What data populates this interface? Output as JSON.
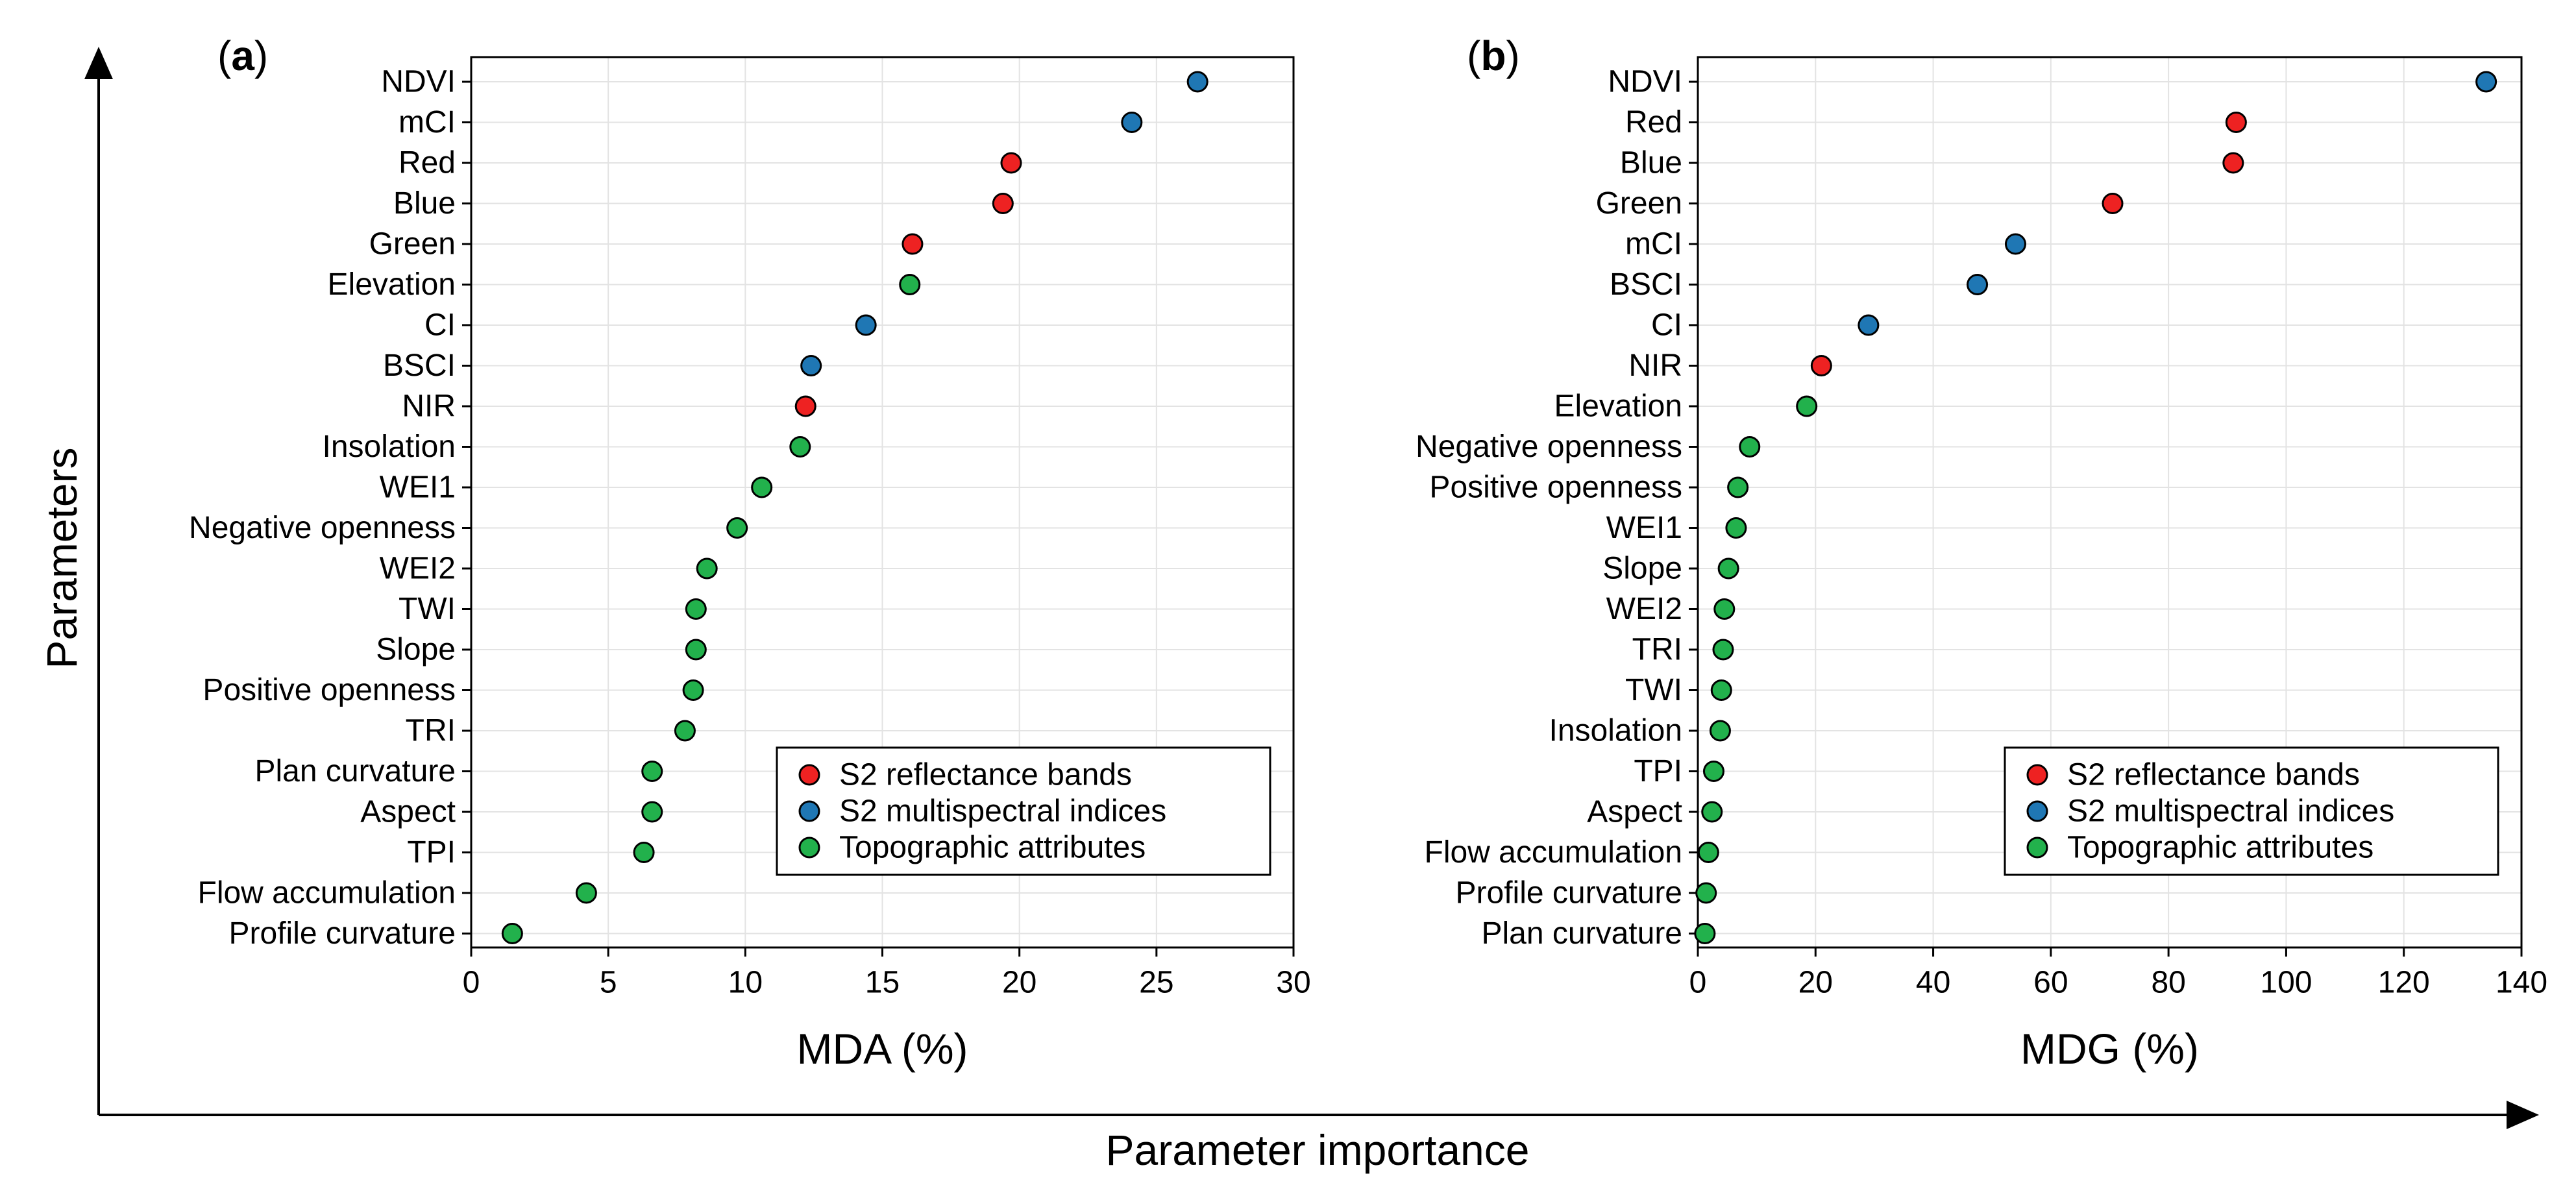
{
  "figure": {
    "y_axis_title": "Parameters",
    "x_axis_title": "Parameter importance"
  },
  "legend": [
    {
      "name": "S2 reflectance bands",
      "color": "#ee2222"
    },
    {
      "name": "S2 multispectral indices",
      "color": "#1f77b4"
    },
    {
      "name": "Topographic attributes",
      "color": "#22b14c"
    }
  ],
  "chart_data": [
    {
      "type": "scatter",
      "panel_label": "a",
      "xlabel": "MDA (%)",
      "ylabel": "",
      "xlim": [
        0,
        30
      ],
      "xticks": [
        0,
        5,
        10,
        15,
        20,
        25,
        30
      ],
      "grid": true,
      "legend_position": "bottom-right",
      "points": [
        {
          "label": "NDVI",
          "value": 26.5,
          "group": 1
        },
        {
          "label": "mCI",
          "value": 24.1,
          "group": 1
        },
        {
          "label": "Red",
          "value": 19.7,
          "group": 0
        },
        {
          "label": "Blue",
          "value": 19.4,
          "group": 0
        },
        {
          "label": "Green",
          "value": 16.1,
          "group": 0
        },
        {
          "label": "Elevation",
          "value": 16.0,
          "group": 2
        },
        {
          "label": "CI",
          "value": 14.4,
          "group": 1
        },
        {
          "label": "BSCI",
          "value": 12.4,
          "group": 1
        },
        {
          "label": "NIR",
          "value": 12.2,
          "group": 0
        },
        {
          "label": "Insolation",
          "value": 12.0,
          "group": 2
        },
        {
          "label": "WEI1",
          "value": 10.6,
          "group": 2
        },
        {
          "label": "Negative openness",
          "value": 9.7,
          "group": 2
        },
        {
          "label": "WEI2",
          "value": 8.6,
          "group": 2
        },
        {
          "label": "TWI",
          "value": 8.2,
          "group": 2
        },
        {
          "label": "Slope",
          "value": 8.2,
          "group": 2
        },
        {
          "label": "Positive openness",
          "value": 8.1,
          "group": 2
        },
        {
          "label": "TRI",
          "value": 7.8,
          "group": 2
        },
        {
          "label": "Plan curvature",
          "value": 6.6,
          "group": 2
        },
        {
          "label": "Aspect",
          "value": 6.6,
          "group": 2
        },
        {
          "label": "TPI",
          "value": 6.3,
          "group": 2
        },
        {
          "label": "Flow accumulation",
          "value": 4.2,
          "group": 2
        },
        {
          "label": "Profile curvature",
          "value": 1.5,
          "group": 2
        }
      ]
    },
    {
      "type": "scatter",
      "panel_label": "b",
      "xlabel": "MDG (%)",
      "ylabel": "",
      "xlim": [
        0,
        140
      ],
      "xticks": [
        0,
        20,
        40,
        60,
        80,
        100,
        120,
        140
      ],
      "grid": true,
      "legend_position": "bottom-right",
      "points": [
        {
          "label": "NDVI",
          "value": 134,
          "group": 1
        },
        {
          "label": "Red",
          "value": 91.5,
          "group": 0
        },
        {
          "label": "Blue",
          "value": 91.0,
          "group": 0
        },
        {
          "label": "Green",
          "value": 70.5,
          "group": 0
        },
        {
          "label": "mCI",
          "value": 54.0,
          "group": 1
        },
        {
          "label": "BSCI",
          "value": 47.5,
          "group": 1
        },
        {
          "label": "CI",
          "value": 29.0,
          "group": 1
        },
        {
          "label": "NIR",
          "value": 21.0,
          "group": 0
        },
        {
          "label": "Elevation",
          "value": 18.5,
          "group": 2
        },
        {
          "label": "Negative openness",
          "value": 8.8,
          "group": 2
        },
        {
          "label": "Positive openness",
          "value": 6.8,
          "group": 2
        },
        {
          "label": "WEI1",
          "value": 6.5,
          "group": 2
        },
        {
          "label": "Slope",
          "value": 5.2,
          "group": 2
        },
        {
          "label": "WEI2",
          "value": 4.5,
          "group": 2
        },
        {
          "label": "TRI",
          "value": 4.3,
          "group": 2
        },
        {
          "label": "TWI",
          "value": 4.0,
          "group": 2
        },
        {
          "label": "Insolation",
          "value": 3.8,
          "group": 2
        },
        {
          "label": "TPI",
          "value": 2.7,
          "group": 2
        },
        {
          "label": "Aspect",
          "value": 2.4,
          "group": 2
        },
        {
          "label": "Flow accumulation",
          "value": 1.8,
          "group": 2
        },
        {
          "label": "Profile curvature",
          "value": 1.4,
          "group": 2
        },
        {
          "label": "Plan curvature",
          "value": 1.2,
          "group": 2
        }
      ]
    }
  ]
}
